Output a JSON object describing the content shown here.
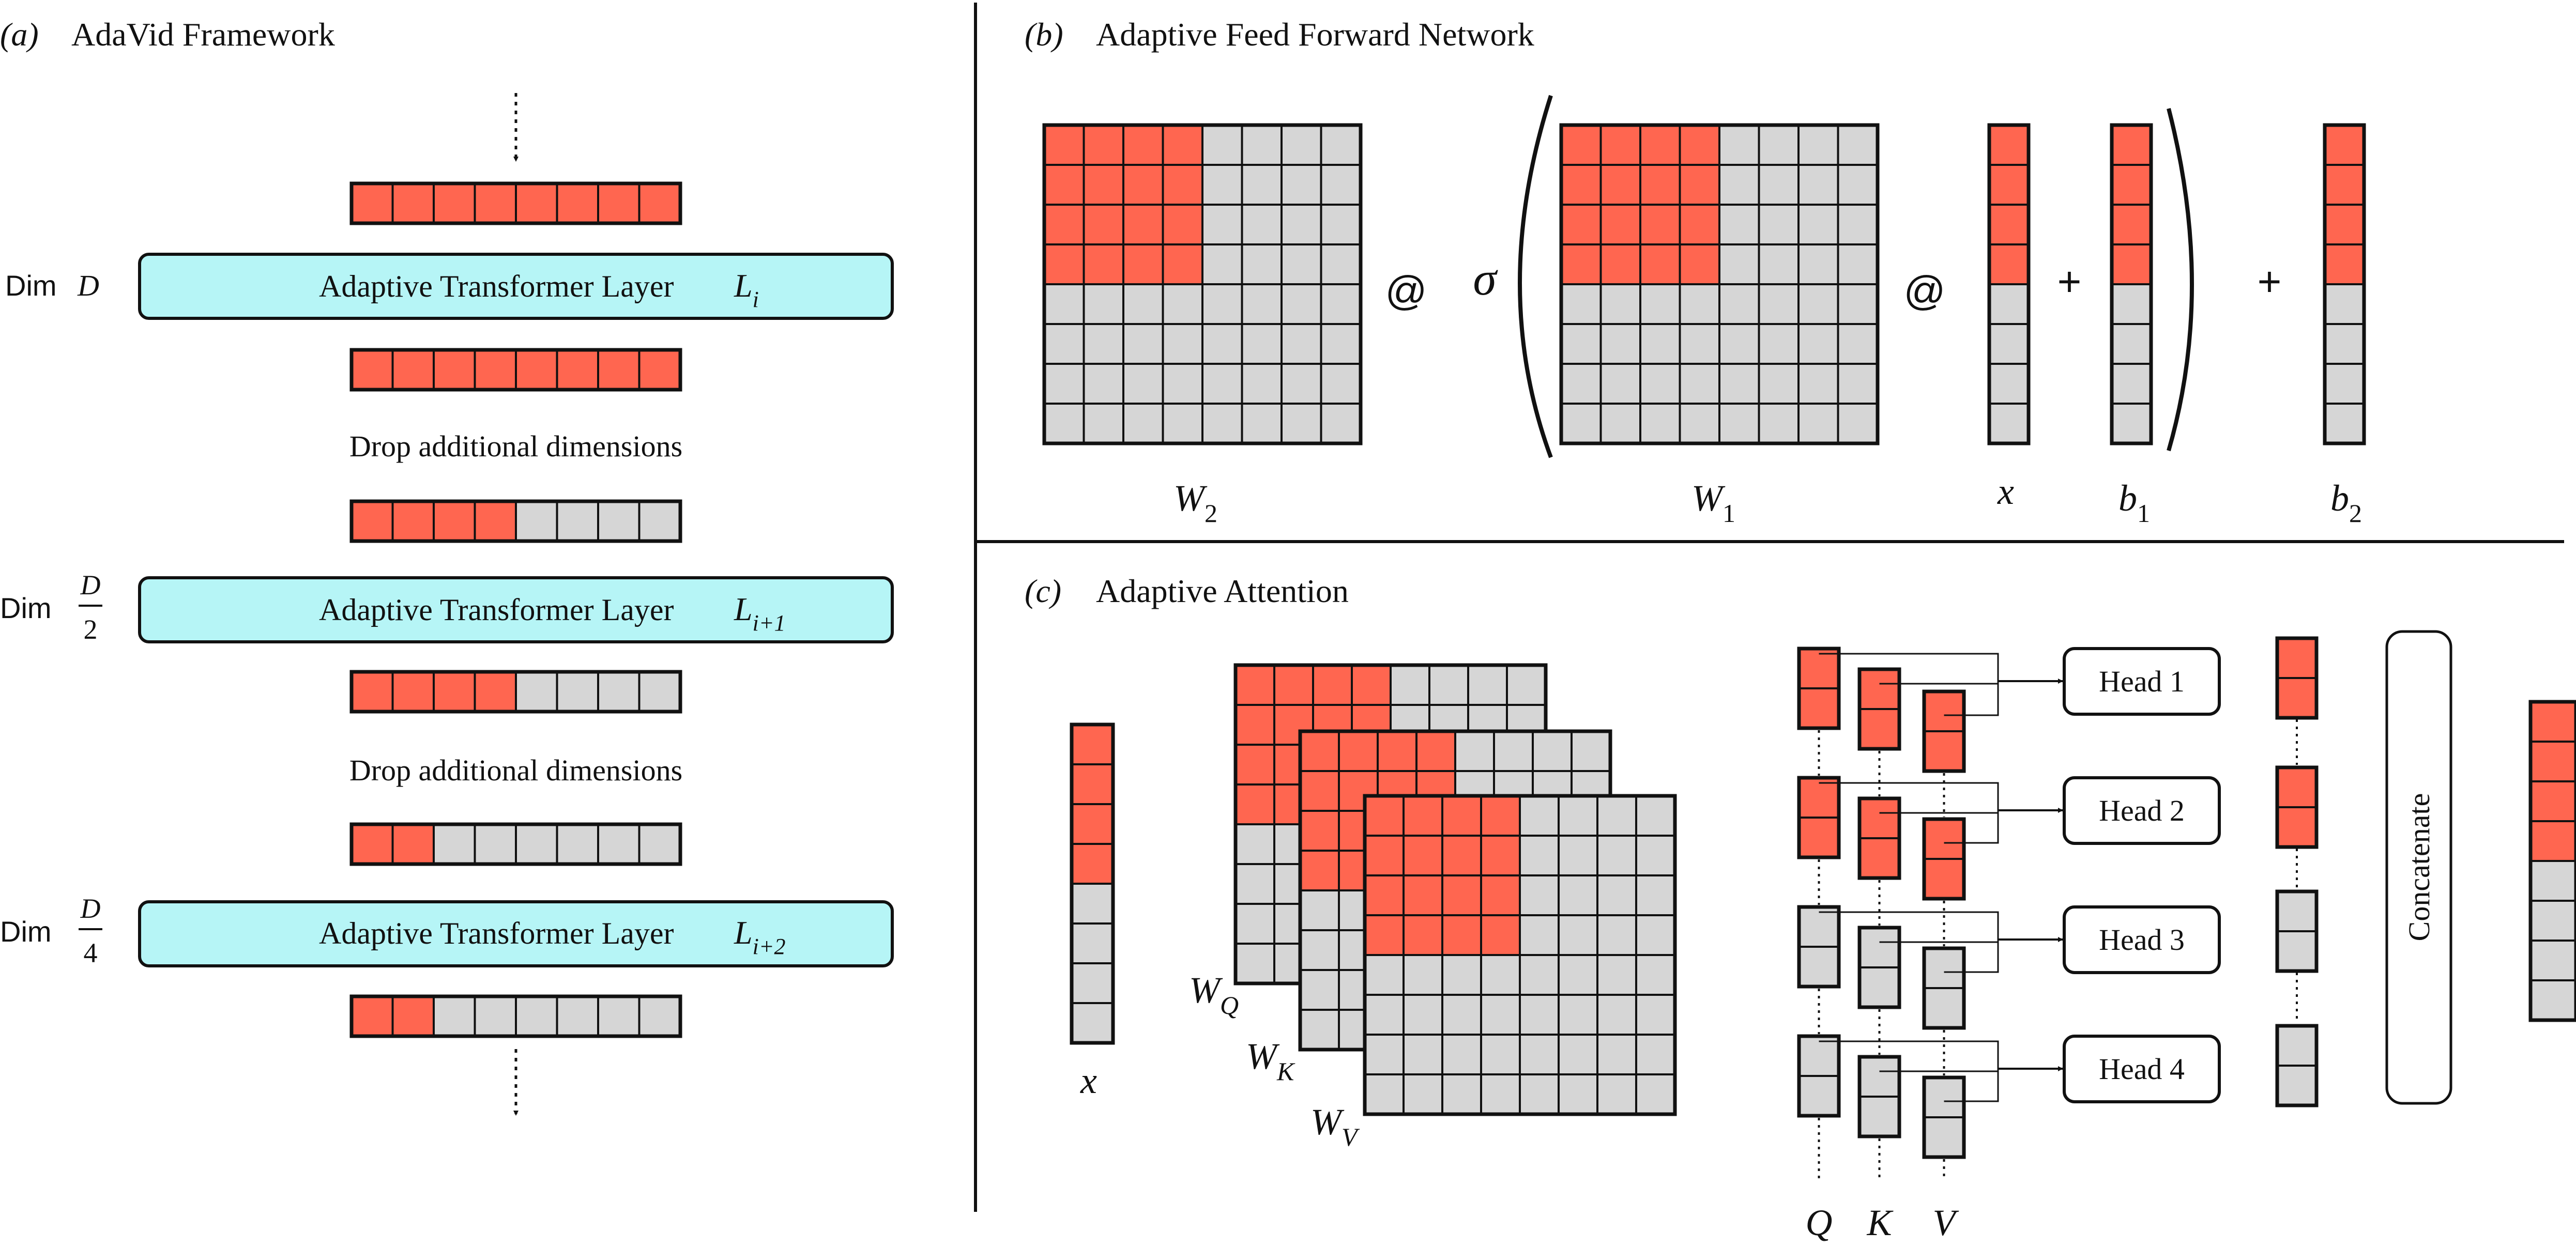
{
  "colors": {
    "active": "#FF6650",
    "inactive": "#D6D6D6",
    "layer_fill": "#B6F5F6",
    "stroke": "#111111"
  },
  "panel_a": {
    "label": "(a)",
    "title": "AdaVid Framework",
    "token_active_counts": [
      8,
      8,
      4,
      4,
      2,
      2
    ],
    "token_cells_per_row": 8,
    "layers": [
      {
        "dim_prefix": "Dim",
        "dim_value": "D",
        "dim_den": "",
        "layer_text": "Adaptive Transformer Layer",
        "layer_symbol": "L",
        "layer_sub": "i"
      },
      {
        "dim_prefix": "Dim",
        "dim_value": "D",
        "dim_den": "2",
        "layer_text": "Adaptive Transformer Layer",
        "layer_symbol": "L",
        "layer_sub": "i+1"
      },
      {
        "dim_prefix": "Dim",
        "dim_value": "D",
        "dim_den": "4",
        "layer_text": "Adaptive Transformer Layer",
        "layer_symbol": "L",
        "layer_sub": "i+2"
      }
    ],
    "drop_text": "Drop additional dimensions"
  },
  "panel_b": {
    "label": "(b)",
    "title": "Adaptive Feed Forward Network",
    "labels": {
      "w2": {
        "sym": "W",
        "sub": "2"
      },
      "w1": {
        "sym": "W",
        "sub": "1"
      },
      "x": {
        "sym": "x",
        "sub": ""
      },
      "b1": {
        "sym": "b",
        "sub": "1"
      },
      "b2": {
        "sym": "b",
        "sub": "2"
      }
    },
    "operators": {
      "matmul": "@",
      "sigma": "σ",
      "plus": "+"
    }
  },
  "panel_c": {
    "label": "(c)",
    "title": "Adaptive Attention",
    "x_label": "x",
    "matrix_labels": [
      {
        "sym": "W",
        "sub": "Q"
      },
      {
        "sym": "W",
        "sub": "K"
      },
      {
        "sym": "W",
        "sub": "V"
      }
    ],
    "heads": [
      "Head 1",
      "Head 2",
      "Head 3",
      "Head 4"
    ],
    "qkv_labels": [
      "Q",
      "K",
      "V"
    ],
    "concat_label": "Concatenate"
  }
}
